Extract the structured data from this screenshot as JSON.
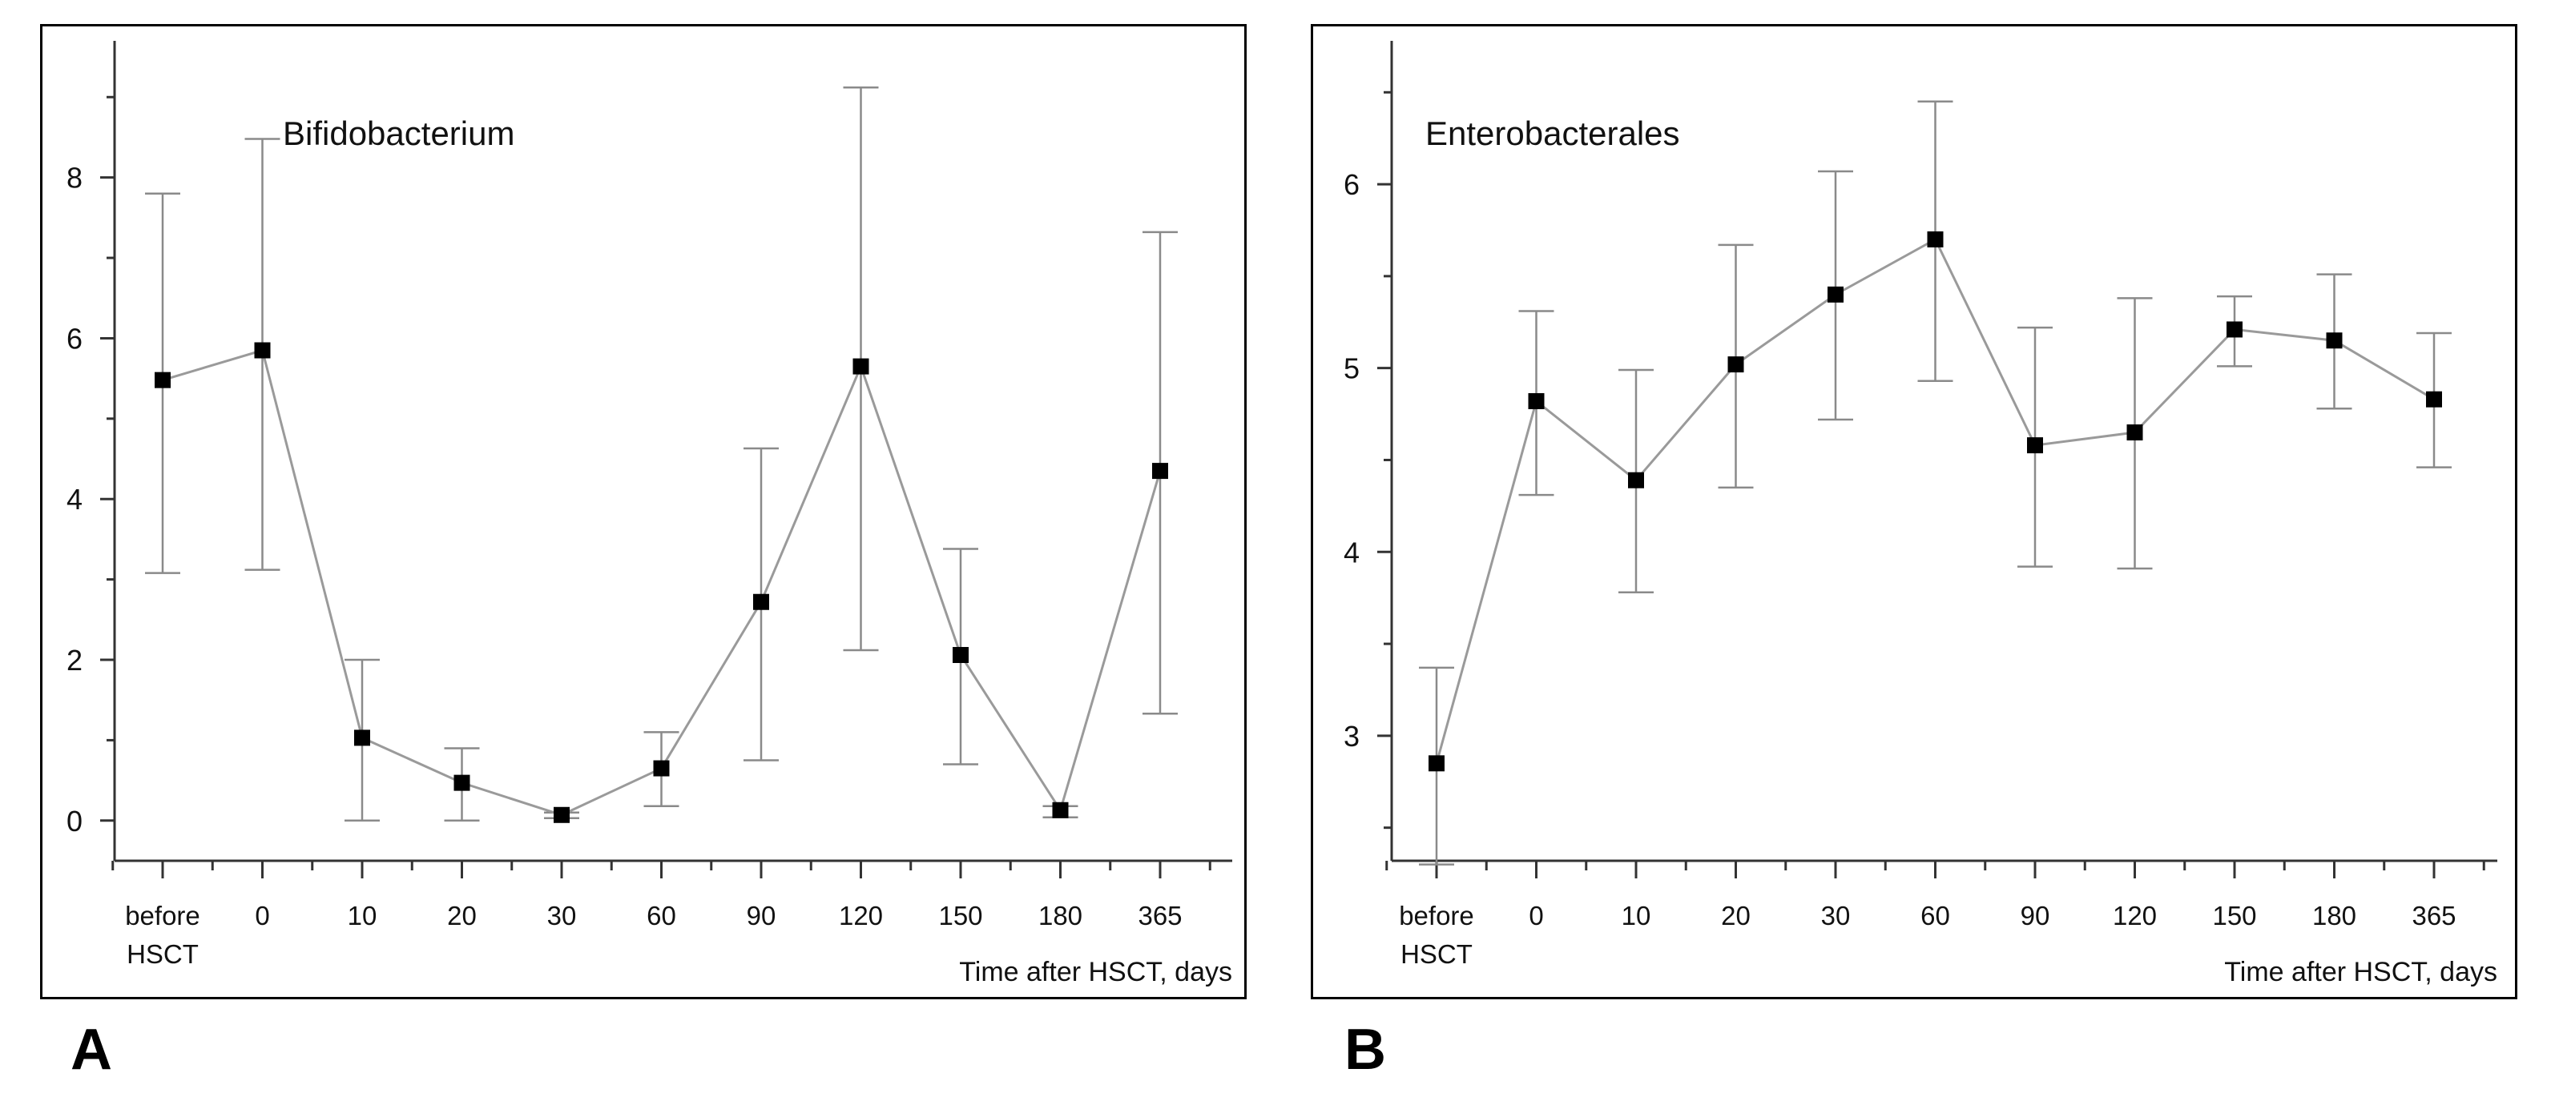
{
  "chart_data": [
    {
      "type": "line",
      "panel_label": "A",
      "title": "Bifidobacterium",
      "xlabel": "Time after HSCT, days",
      "ylabel": "",
      "categories": [
        "before\nHSCT",
        "0",
        "10",
        "20",
        "30",
        "60",
        "90",
        "120",
        "150",
        "180",
        "365"
      ],
      "values": [
        5.48,
        5.85,
        1.03,
        0.47,
        0.07,
        0.65,
        2.72,
        5.65,
        2.06,
        0.13,
        4.35
      ],
      "err_low": [
        3.08,
        3.12,
        0.0,
        0.0,
        0.03,
        0.18,
        0.75,
        2.12,
        0.7,
        0.04,
        1.33
      ],
      "err_high": [
        7.8,
        8.48,
        2.0,
        0.9,
        0.1,
        1.1,
        4.63,
        9.12,
        3.38,
        0.18,
        7.32
      ],
      "ylim": [
        -0.5,
        9.7
      ],
      "yticks": [
        0,
        2,
        4,
        6,
        8
      ],
      "grid": false
    },
    {
      "type": "line",
      "panel_label": "B",
      "title": "Enterobacterales",
      "xlabel": "Time after HSCT, days",
      "ylabel": "",
      "categories": [
        "before\nHSCT",
        "0",
        "10",
        "20",
        "30",
        "60",
        "90",
        "120",
        "150",
        "180",
        "365"
      ],
      "values": [
        2.85,
        4.82,
        4.39,
        5.02,
        5.4,
        5.7,
        4.58,
        4.65,
        5.21,
        5.15,
        4.83
      ],
      "err_low": [
        2.3,
        4.31,
        3.78,
        4.35,
        4.72,
        4.93,
        3.92,
        3.91,
        5.01,
        4.78,
        4.46
      ],
      "err_high": [
        3.37,
        5.31,
        4.99,
        5.67,
        6.07,
        6.45,
        5.22,
        5.38,
        5.39,
        5.51,
        5.19
      ],
      "ylim": [
        2.32,
        6.78
      ],
      "yticks": [
        3,
        4,
        5,
        6
      ],
      "grid": false
    }
  ]
}
